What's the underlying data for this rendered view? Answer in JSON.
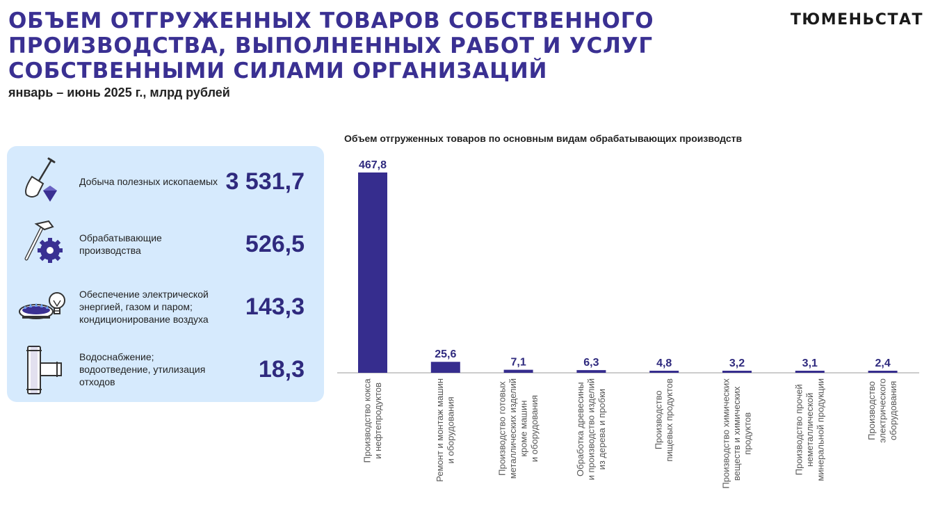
{
  "header": {
    "title_lines": [
      "ОБЪЕМ ОТГРУЖЕННЫХ ТОВАРОВ СОБСТВЕННОГО",
      "ПРОИЗВОДСТВА, ВЫПОЛНЕННЫХ РАБОТ И УСЛУГ",
      "СОБСТВЕННЫМИ СИЛАМИ ОРГАНИЗАЦИЙ"
    ],
    "subtitle": "январь – июнь 2025 г., млрд рублей",
    "brand": "ТЮМЕНЬСТАТ"
  },
  "summary": [
    {
      "label": "Добыча полезных ископаемых",
      "value": "3 531,7",
      "icon": "shovel-diamond-icon"
    },
    {
      "label": "Обрабатывающие производства",
      "value": "526,5",
      "icon": "hammer-gear-icon"
    },
    {
      "label": "Обеспечение электрической энергией, газом и паром; кондиционирование воздуха",
      "value": "143,3",
      "icon": "gas-burner-bulb-icon"
    },
    {
      "label": "Водоснабжение; водоотведение, утилизация отходов",
      "value": "18,3",
      "icon": "pipe-tee-icon"
    }
  ],
  "colors": {
    "title": "#3a3092",
    "bar": "#362d8e",
    "panel": "#d6eafd",
    "value": "#2f2a7e"
  },
  "chart_data": {
    "type": "bar",
    "title": "Объем отгруженных товаров по основным видам обрабатывающих производств",
    "categories": [
      [
        "Производство кокса",
        "и нефтепродуктов"
      ],
      [
        "Ремонт и монтаж машин",
        "и оборудования"
      ],
      [
        "Производство готовых",
        "металлических изделий",
        "кроме машин",
        "и оборудования"
      ],
      [
        "Обработка древесины",
        "и производство изделий",
        "из дерева и пробки"
      ],
      [
        "Производство",
        "пищевых продуктов"
      ],
      [
        "Производство химических",
        "веществ и химических",
        "продуктов"
      ],
      [
        "Производство прочей",
        "неметаллической",
        "минеральной продукции"
      ],
      [
        "Производство",
        "электрического",
        "оборудования"
      ]
    ],
    "values": [
      467.8,
      25.6,
      7.1,
      6.3,
      4.8,
      3.2,
      3.1,
      2.4
    ],
    "value_labels": [
      "467,8",
      "25,6",
      "7,1",
      "6,3",
      "4,8",
      "3,2",
      "3,1",
      "2,4"
    ],
    "ylim": [
      0,
      467.8
    ],
    "grid": false,
    "legend": "none"
  }
}
